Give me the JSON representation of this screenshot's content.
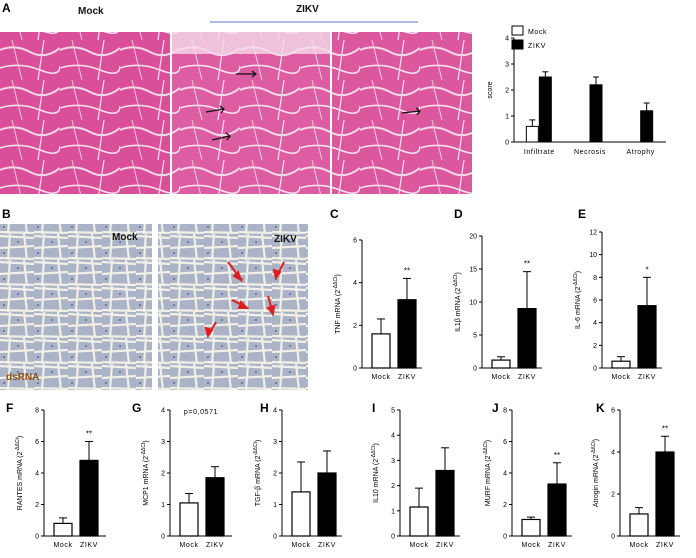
{
  "panels": {
    "A": {
      "label": "A",
      "mock_label": "Mock",
      "zikv_label": "ZIKV"
    },
    "B": {
      "label": "B",
      "mock_label": "Mock",
      "zikv_label": "ZIKV",
      "stain_label": "dsRNA"
    }
  },
  "colors": {
    "he_stain": "#d9529a",
    "ihc_bg": "#b8c1cf",
    "arrow_red": "#e21d1d",
    "accent_line": "#5b7bd5"
  },
  "chart_data": [
    {
      "id": "A",
      "type": "bar",
      "title": "",
      "ylabel": "score",
      "xlabel": "",
      "ylim": [
        0,
        4
      ],
      "yticks": [
        0,
        1,
        2,
        3,
        4
      ],
      "categories": [
        "Infiltrate",
        "Necrosis",
        "Atrophy"
      ],
      "legend": [
        "Mock",
        "ZIKV"
      ],
      "legend_position": "top-right",
      "series": [
        {
          "name": "Mock",
          "values": [
            0.6,
            0,
            0
          ],
          "errors": [
            0.25,
            0,
            0
          ]
        },
        {
          "name": "ZIKV",
          "values": [
            2.5,
            2.2,
            1.2
          ],
          "errors": [
            0.2,
            0.3,
            0.3
          ]
        }
      ]
    },
    {
      "id": "C",
      "type": "bar",
      "label": "C",
      "ylabel": "TNF mRNA (2^-ΔΔCt)",
      "ylim": [
        0,
        6
      ],
      "yticks": [
        0,
        2,
        4,
        6
      ],
      "categories": [
        "Mock",
        "ZIKV"
      ],
      "values": [
        1.6,
        3.2
      ],
      "errors": [
        0.7,
        1.0
      ],
      "annotation": "**"
    },
    {
      "id": "D",
      "type": "bar",
      "label": "D",
      "ylabel": "IL1β mRNA (2^-ΔΔCt)",
      "ylim": [
        0,
        20
      ],
      "yticks": [
        0,
        5,
        10,
        15,
        20
      ],
      "categories": [
        "Mock",
        "ZIKV"
      ],
      "values": [
        1.2,
        9
      ],
      "errors": [
        0.5,
        5.6
      ],
      "annotation": "**"
    },
    {
      "id": "E",
      "type": "bar",
      "label": "E",
      "ylabel": "IL-6 mRNA (2^-ΔΔCt)",
      "ylim": [
        0,
        12
      ],
      "yticks": [
        0,
        2,
        4,
        6,
        8,
        10,
        12
      ],
      "categories": [
        "Mock",
        "ZIKV"
      ],
      "values": [
        0.6,
        5.5
      ],
      "errors": [
        0.4,
        2.5
      ],
      "annotation": "*"
    },
    {
      "id": "F",
      "type": "bar",
      "label": "F",
      "ylabel": "RANTES mRNA (2^-ΔΔCt)",
      "ylim": [
        0,
        8
      ],
      "yticks": [
        0,
        2,
        4,
        6,
        8
      ],
      "categories": [
        "Mock",
        "ZIKV"
      ],
      "values": [
        0.8,
        4.8
      ],
      "errors": [
        0.35,
        1.2
      ],
      "annotation": "**"
    },
    {
      "id": "G",
      "type": "bar",
      "label": "G",
      "ylabel": "MCP1 mRNA (2^-ΔΔCt)",
      "ylim": [
        0,
        4
      ],
      "yticks": [
        0,
        1,
        2,
        3,
        4
      ],
      "categories": [
        "Mock",
        "ZIKV"
      ],
      "values": [
        1.05,
        1.85
      ],
      "errors": [
        0.3,
        0.35
      ],
      "annotation": "p=0,0571"
    },
    {
      "id": "H",
      "type": "bar",
      "label": "H",
      "ylabel": "TGF-β mRNA (2^-ΔΔCt)",
      "ylim": [
        0,
        4
      ],
      "yticks": [
        0,
        1,
        2,
        3,
        4
      ],
      "categories": [
        "Mock",
        "ZIKV"
      ],
      "values": [
        1.4,
        2.0
      ],
      "errors": [
        0.95,
        0.7
      ],
      "annotation": ""
    },
    {
      "id": "I",
      "type": "bar",
      "label": "I",
      "ylabel": "IL10 mRNA (2^-ΔΔCt)",
      "ylim": [
        0,
        5
      ],
      "yticks": [
        0,
        1,
        2,
        3,
        4,
        5
      ],
      "categories": [
        "Mock",
        "ZIKV"
      ],
      "values": [
        1.15,
        2.6
      ],
      "errors": [
        0.75,
        0.9
      ],
      "annotation": ""
    },
    {
      "id": "J",
      "type": "bar",
      "label": "J",
      "ylabel": "MURF mRNA (2^-ΔΔCt)",
      "ylim": [
        0,
        8
      ],
      "yticks": [
        0,
        2,
        4,
        6,
        8
      ],
      "categories": [
        "Mock",
        "ZIKV"
      ],
      "values": [
        1.05,
        3.3
      ],
      "errors": [
        0.15,
        1.35
      ],
      "annotation": "**"
    },
    {
      "id": "K",
      "type": "bar",
      "label": "K",
      "ylabel": "Atrogin mRNA (2^-ΔΔCt)",
      "ylim": [
        0,
        6
      ],
      "yticks": [
        0,
        2,
        4,
        6
      ],
      "categories": [
        "Mock",
        "ZIKV"
      ],
      "values": [
        1.05,
        4.0
      ],
      "errors": [
        0.3,
        0.75
      ],
      "annotation": "**"
    }
  ]
}
